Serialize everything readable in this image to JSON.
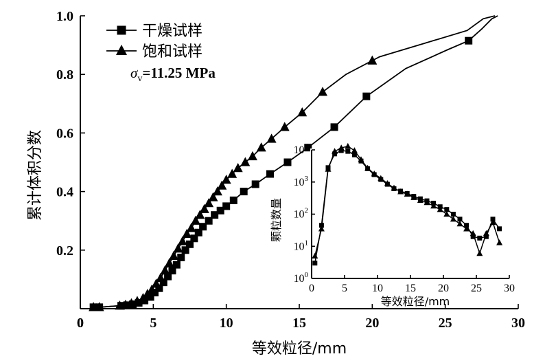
{
  "chart_data": [
    {
      "type": "line",
      "title": "",
      "xlabel": "等效粒径/mm",
      "ylabel": "累计体积分数",
      "xlim": [
        0,
        30
      ],
      "ylim": [
        0,
        1.0
      ],
      "x_ticks": [
        0,
        5,
        10,
        15,
        20,
        25,
        30
      ],
      "y_ticks": [
        0.2,
        0.4,
        0.6,
        0.8,
        1.0
      ],
      "x_tick_labels": [
        "0",
        "5",
        "10",
        "15",
        "20",
        "25",
        "30"
      ],
      "y_tick_labels": [
        "0.2",
        "0.4",
        "0.6",
        "0.8",
        "1.0"
      ],
      "legend_position": "top-left",
      "annotation": {
        "symbol": "σ",
        "subscript": "v",
        "text": "=11.25 MPa"
      },
      "series": [
        {
          "name": "干燥试样",
          "marker": "square",
          "x": [
            0.9,
            1.3,
            2.8,
            3.2,
            3.6,
            4.0,
            4.4,
            4.8,
            5.1,
            5.4,
            5.7,
            6.0,
            6.3,
            6.6,
            6.9,
            7.2,
            7.5,
            7.8,
            8.1,
            8.4,
            8.8,
            9.2,
            9.6,
            10.0,
            10.5,
            11.2,
            12.0,
            13.0,
            14.2,
            15.6,
            17.4,
            19.6,
            22.3,
            25.2,
            26.6,
            27.5,
            28.2,
            28.6
          ],
          "y": [
            0.005,
            0.005,
            0.01,
            0.012,
            0.015,
            0.02,
            0.028,
            0.04,
            0.055,
            0.07,
            0.09,
            0.11,
            0.13,
            0.15,
            0.175,
            0.2,
            0.22,
            0.24,
            0.26,
            0.28,
            0.3,
            0.32,
            0.335,
            0.35,
            0.37,
            0.4,
            0.425,
            0.46,
            0.5,
            0.55,
            0.62,
            0.725,
            0.82,
            0.885,
            0.915,
            0.955,
            0.99,
            1.0
          ],
          "marker_x": [
            0.9,
            1.3,
            2.8,
            3.2,
            3.6,
            4.0,
            4.4,
            4.8,
            5.1,
            5.4,
            5.7,
            6.0,
            6.3,
            6.6,
            6.9,
            7.2,
            7.5,
            7.8,
            8.1,
            8.4,
            8.8,
            9.2,
            9.6,
            10.0,
            10.5,
            11.2,
            12.0,
            13.0,
            14.2,
            15.6,
            17.4,
            19.6,
            26.6
          ]
        },
        {
          "name": "饱和试样",
          "marker": "triangle",
          "x": [
            0.9,
            1.3,
            2.7,
            3.1,
            3.5,
            3.9,
            4.3,
            4.6,
            4.9,
            5.2,
            5.5,
            5.8,
            6.1,
            6.4,
            6.7,
            7.0,
            7.3,
            7.6,
            7.9,
            8.2,
            8.5,
            8.8,
            9.1,
            9.4,
            9.7,
            10.0,
            10.4,
            10.8,
            11.3,
            11.8,
            12.4,
            13.1,
            14.0,
            15.2,
            16.6,
            18.2,
            20.5,
            23.5,
            26.5,
            27.6,
            28.4
          ],
          "y": [
            0.005,
            0.005,
            0.01,
            0.013,
            0.018,
            0.026,
            0.036,
            0.05,
            0.065,
            0.085,
            0.105,
            0.13,
            0.155,
            0.18,
            0.205,
            0.23,
            0.255,
            0.275,
            0.3,
            0.32,
            0.34,
            0.36,
            0.38,
            0.4,
            0.42,
            0.44,
            0.46,
            0.48,
            0.5,
            0.52,
            0.55,
            0.58,
            0.62,
            0.67,
            0.74,
            0.8,
            0.86,
            0.905,
            0.95,
            0.99,
            1.0
          ],
          "marker_x": [
            0.9,
            1.3,
            2.7,
            3.1,
            3.5,
            3.9,
            4.3,
            4.6,
            4.9,
            5.2,
            5.5,
            5.8,
            6.1,
            6.4,
            6.7,
            7.0,
            7.3,
            7.6,
            7.9,
            8.2,
            8.5,
            8.8,
            9.1,
            9.4,
            9.7,
            10.0,
            10.4,
            10.8,
            11.3,
            11.8,
            12.4,
            13.1,
            14.0,
            15.2,
            16.6,
            20.0
          ]
        }
      ]
    },
    {
      "type": "line",
      "title": "",
      "xlabel": "等效粒径/mm",
      "ylabel": "颗粒数量",
      "xscale": "linear",
      "yscale": "log",
      "xlim": [
        0,
        30
      ],
      "ylim": [
        1,
        10000
      ],
      "x_ticks": [
        0,
        5,
        10,
        15,
        20,
        25,
        30
      ],
      "x_tick_labels": [
        "0",
        "5",
        "10",
        "15",
        "20",
        "25",
        "30"
      ],
      "y_ticks": [
        1,
        10,
        100,
        1000,
        10000
      ],
      "y_tick_labels": [
        {
          "base": "10",
          "exp": "0"
        },
        {
          "base": "10",
          "exp": "1"
        },
        {
          "base": "10",
          "exp": "2"
        },
        {
          "base": "10",
          "exp": "3"
        },
        {
          "base": "10",
          "exp": "4"
        }
      ],
      "series": [
        {
          "name": "干燥试样",
          "marker": "square",
          "x": [
            0.5,
            1.5,
            2.5,
            3.5,
            4.5,
            5.5,
            6.5,
            7.5,
            8.5,
            9.5,
            10.5,
            11.5,
            12.5,
            13.5,
            14.5,
            15.5,
            16.5,
            17.5,
            18.5,
            19.5,
            20.5,
            21.5,
            22.5,
            23.5,
            24.5,
            25.5,
            26.5,
            27.5,
            28.5
          ],
          "y": [
            3,
            45,
            2800,
            7500,
            9500,
            9000,
            7000,
            4500,
            2600,
            1700,
            1200,
            850,
            620,
            520,
            440,
            360,
            300,
            260,
            220,
            170,
            140,
            100,
            70,
            45,
            20,
            18,
            20,
            70,
            35
          ]
        },
        {
          "name": "饱和试样",
          "marker": "triangle",
          "x": [
            0.5,
            1.5,
            2.5,
            3.5,
            4.5,
            5.5,
            6.5,
            7.5,
            8.5,
            9.5,
            10.5,
            11.5,
            12.5,
            13.5,
            14.5,
            15.5,
            16.5,
            17.5,
            18.5,
            19.5,
            20.5,
            21.5,
            22.5,
            23.5,
            24.5,
            25.5,
            26.5,
            27.5,
            28.5
          ],
          "y": [
            5,
            35,
            2500,
            9000,
            11500,
            13000,
            9500,
            5000,
            2700,
            1800,
            1300,
            900,
            650,
            500,
            420,
            330,
            270,
            230,
            180,
            140,
            100,
            70,
            50,
            35,
            25,
            6,
            25,
            55,
            13
          ]
        }
      ]
    }
  ]
}
